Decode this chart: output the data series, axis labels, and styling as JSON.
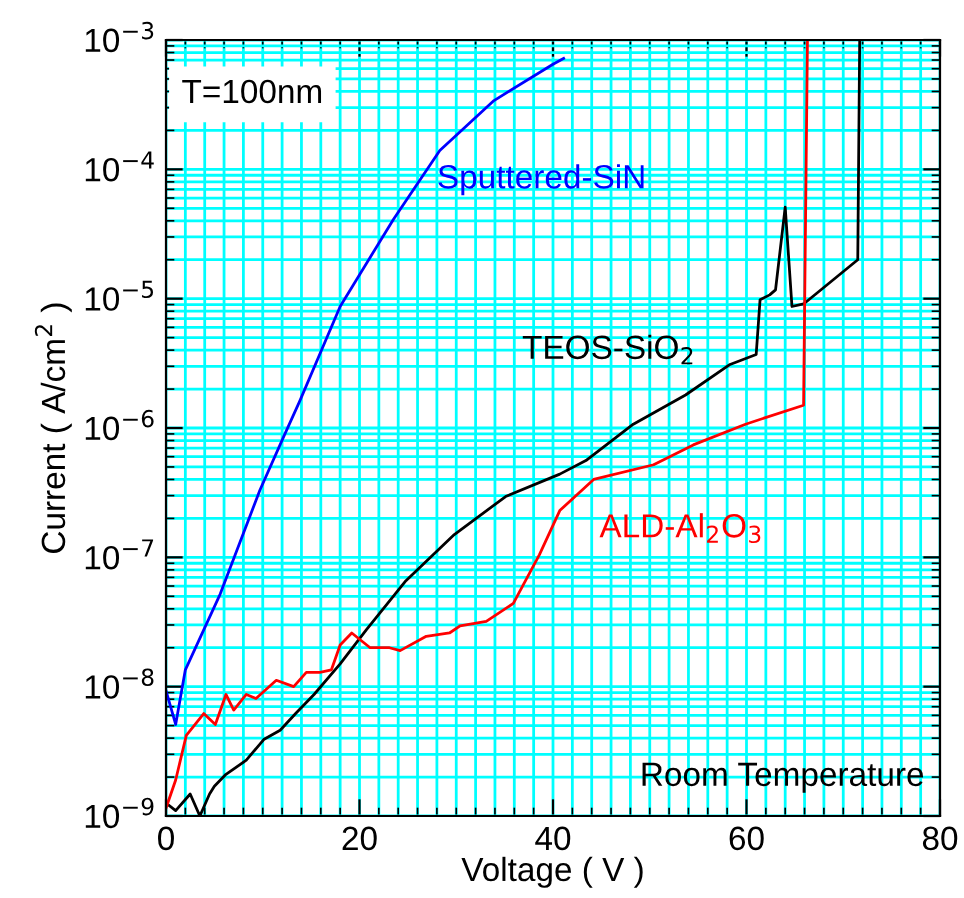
{
  "chart_data": {
    "type": "line",
    "xlabel": "Voltage ( V )",
    "ylabel": "Current ( A/cm$^{2}$ )",
    "xlim": [
      0,
      80
    ],
    "xticks": [
      0,
      20,
      40,
      60,
      80
    ],
    "ylim": [
      1e-09,
      0.001
    ],
    "yticks": [
      {
        "value": 1e-09,
        "label": "10$^{−9}$"
      },
      {
        "value": 1e-08,
        "label": "10$^{−8}$"
      },
      {
        "value": 1e-07,
        "label": "10$^{−7}$"
      },
      {
        "value": 1e-06,
        "label": "10$^{−6}$"
      },
      {
        "value": 1e-05,
        "label": "10$^{−5}$"
      },
      {
        "value": 0.0001,
        "label": "10$^{−4}$"
      },
      {
        "value": 0.001,
        "label": "10$^{−3}$"
      }
    ],
    "log": "y",
    "grid": true,
    "legend": false,
    "marker": "none",
    "line_style": "solid",
    "annotations": [
      "T=100nm",
      "Room Temperature"
    ],
    "series": [
      {
        "name": "Sputtered-SiN",
        "color": "#0000ff",
        "x": [
          0,
          1,
          2,
          5.6,
          9.7,
          12.2,
          13.8,
          18,
          23.5,
          28.3,
          33.9,
          40,
          41.1
        ],
        "values": [
          9.3e-09,
          5.1e-09,
          1.35e-08,
          5.2e-08,
          3.3e-07,
          8.7e-07,
          1.6e-06,
          8.7e-06,
          4.1e-05,
          0.00014,
          0.00034,
          0.00065,
          0.00072
        ]
      },
      {
        "name": "TEOS-SiO$_{2}$",
        "color": "#000000",
        "x": [
          0,
          1,
          2.5,
          3.5,
          4.5,
          5,
          6.2,
          8.3,
          10.1,
          11.8,
          13.4,
          15.3,
          18,
          20.7,
          24.8,
          29.8,
          35.1,
          40.7,
          43.4,
          48.3,
          53.7,
          58.3,
          61,
          61.4,
          62.4,
          63,
          64,
          64.7,
          65.9,
          71.5,
          71.7
        ],
        "values": [
          1.26e-09,
          1.1e-09,
          1.48e-09,
          1e-09,
          1.48e-09,
          1.7e-09,
          2.1e-09,
          2.7e-09,
          3.9e-09,
          4.6e-09,
          6.2e-09,
          8.7e-09,
          1.5e-08,
          2.75e-08,
          6.6e-08,
          1.5e-07,
          2.95e-07,
          4.4e-07,
          5.6e-07,
          1.07e-06,
          1.8e-06,
          3.1e-06,
          3.7e-06,
          9.8e-06,
          1.07e-05,
          1.17e-05,
          5.1e-05,
          8.7e-06,
          9.1e-06,
          2e-05,
          0.001
        ]
      },
      {
        "name": "ALD-Al$_{2}$O$_{3}$",
        "color": "#ff0000",
        "x": [
          0,
          1,
          2.1,
          3.9,
          5.1,
          6.2,
          7,
          8.3,
          9.3,
          11.4,
          13.2,
          14.5,
          15.9,
          17.1,
          18,
          19.2,
          21.1,
          23.1,
          24.2,
          26.9,
          29.3,
          30.4,
          33.1,
          35.9,
          38.6,
          40.7,
          44.2,
          50.4,
          54.5,
          59.9,
          65.9,
          66.3
        ],
        "values": [
          1.15e-09,
          1.9e-09,
          4.2e-09,
          6.2e-09,
          5.1e-09,
          8.7e-09,
          6.6e-09,
          8.7e-09,
          8.1e-09,
          1.12e-08,
          1e-08,
          1.29e-08,
          1.29e-08,
          1.35e-08,
          2.1e-08,
          2.6e-08,
          2e-08,
          2e-08,
          1.9e-08,
          2.45e-08,
          2.6e-08,
          2.95e-08,
          3.2e-08,
          4.4e-08,
          1.05e-07,
          2.3e-07,
          4e-07,
          5.2e-07,
          7.4e-07,
          1.07e-06,
          1.5e-06,
          0.001
        ]
      }
    ]
  }
}
